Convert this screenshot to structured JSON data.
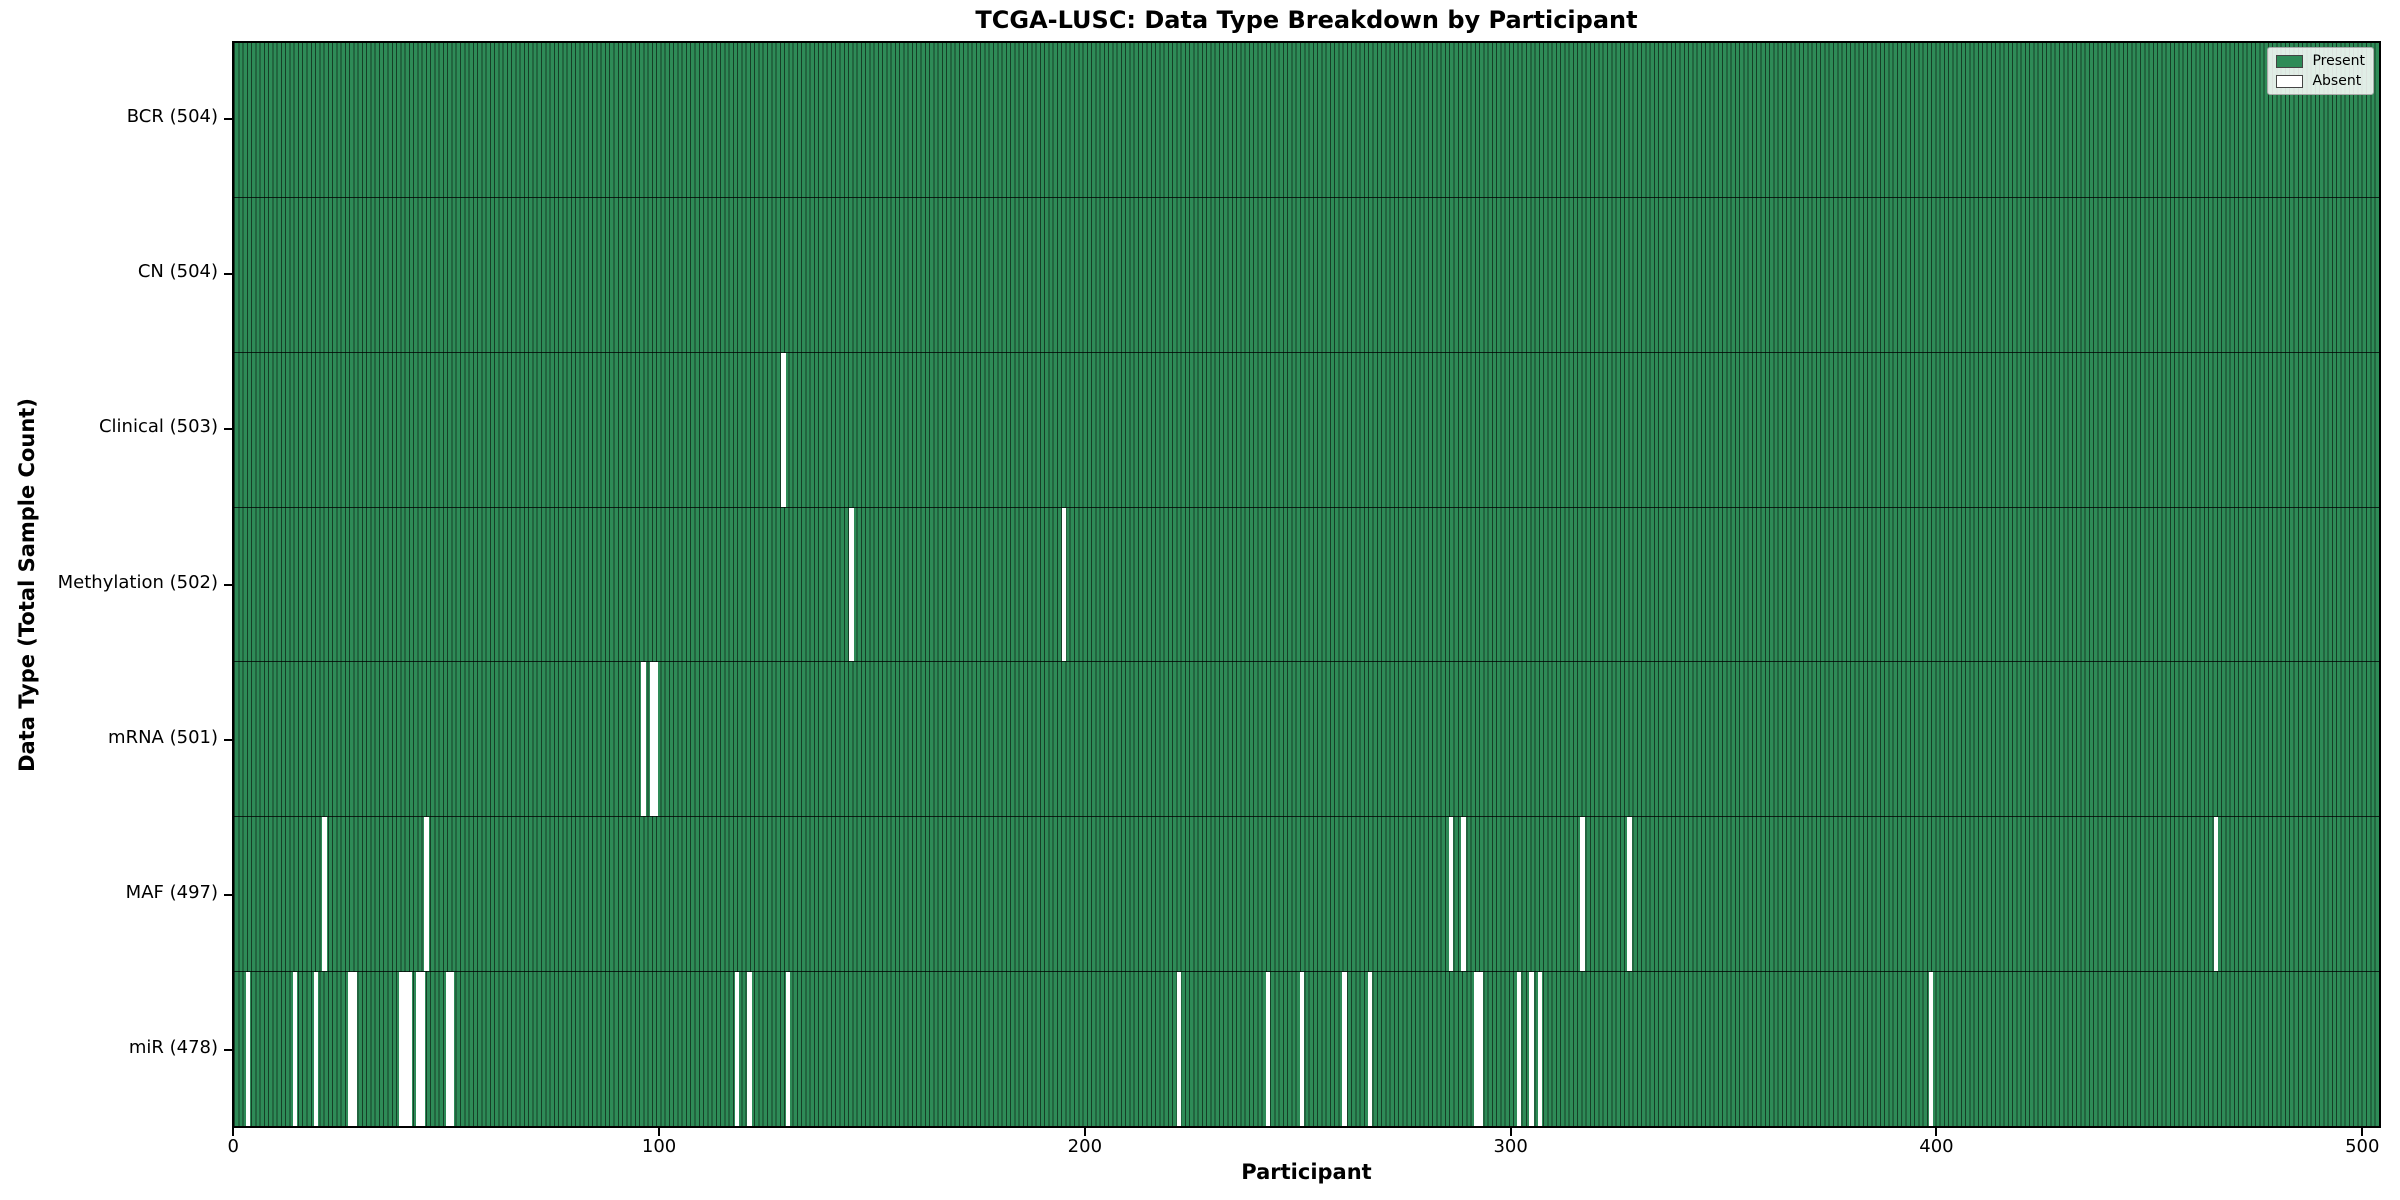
{
  "chart_data": {
    "type": "heatmap",
    "title": "TCGA-LUSC: Data Type Breakdown by Participant",
    "xlabel": "Participant",
    "ylabel": "Data Type (Total Sample Count)",
    "x_ticks": [
      0,
      100,
      200,
      300,
      400,
      500
    ],
    "x_range": [
      0,
      504
    ],
    "n_participants": 504,
    "grid": false,
    "legend_position": "upper right",
    "legend": [
      {
        "label": "Present",
        "color": "#2e8b57"
      },
      {
        "label": "Absent",
        "color": "#ffffff"
      }
    ],
    "colors": {
      "present": "#2e8b57",
      "absent": "#ffffff",
      "bar_edge": "#000000",
      "background": "#ffffff"
    },
    "rows": [
      {
        "label": "BCR (504)",
        "data_type": "BCR",
        "total": 504,
        "absent_participants": []
      },
      {
        "label": "CN (504)",
        "data_type": "CN",
        "total": 504,
        "absent_participants": []
      },
      {
        "label": "Clinical (503)",
        "data_type": "Clinical",
        "total": 503,
        "absent_participants": [
          129
        ]
      },
      {
        "label": "Methylation (502)",
        "data_type": "Methylation",
        "total": 502,
        "absent_participants": [
          145,
          195
        ]
      },
      {
        "label": "mRNA (501)",
        "data_type": "mRNA",
        "total": 501,
        "absent_participants": [
          96,
          98,
          99
        ]
      },
      {
        "label": "MAF (497)",
        "data_type": "MAF",
        "total": 497,
        "absent_participants": [
          21,
          45,
          286,
          289,
          317,
          328,
          466
        ]
      },
      {
        "label": "miR (478)",
        "data_type": "miR",
        "total": 478,
        "absent_participants": [
          3,
          14,
          19,
          27,
          28,
          39,
          40,
          41,
          43,
          44,
          50,
          51,
          118,
          121,
          130,
          222,
          243,
          251,
          261,
          267,
          292,
          293,
          302,
          305,
          307,
          399
        ]
      }
    ]
  }
}
